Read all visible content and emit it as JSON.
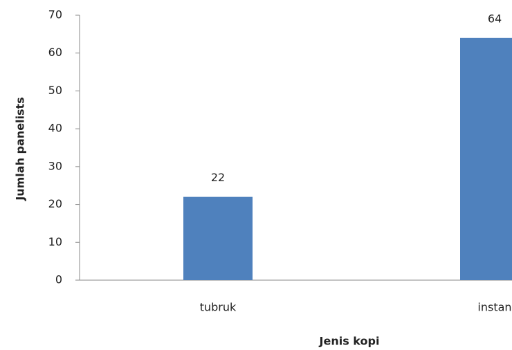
{
  "chart_data": {
    "type": "bar",
    "x_label": "Jenis kopi",
    "y_label": "Jumlah panelists",
    "categories": [
      "tubruk",
      "instan"
    ],
    "values": [
      22,
      64
    ],
    "color": "#4f81bd",
    "ylim": [
      0,
      70
    ],
    "yticks": [
      0,
      10,
      20,
      30,
      40,
      50,
      60,
      70
    ],
    "grid": false
  }
}
